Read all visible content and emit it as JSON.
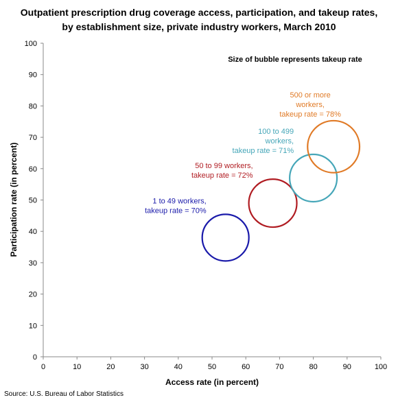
{
  "chart_data": {
    "type": "scatter",
    "title_lines": [
      "Outpatient prescription drug coverage access, participation, and takeup rates,",
      "by establishment size, private industry workers, March 2010"
    ],
    "xlabel": "Access rate (in percent)",
    "ylabel": "Participation rate (in percent)",
    "xlim": [
      0,
      100
    ],
    "ylim": [
      0,
      100
    ],
    "xticks": [
      "0",
      "10",
      "20",
      "30",
      "40",
      "50",
      "60",
      "70",
      "80",
      "90",
      "100"
    ],
    "yticks": [
      "0",
      "10",
      "20",
      "30",
      "40",
      "50",
      "60",
      "70",
      "80",
      "90",
      "100"
    ],
    "grid": false,
    "note": "Size of bubble represents takeup rate",
    "source": "Source: U.S. Bureau of Labor Statistics",
    "points": [
      {
        "x": 54,
        "y": 38,
        "size": 70,
        "color": "#1a1aaa",
        "label_lines": [
          "1 to 49 workers,",
          "takeup rate = 70%"
        ]
      },
      {
        "x": 68,
        "y": 49,
        "size": 72,
        "color": "#b01c22",
        "label_lines": [
          "50 to 99 workers,",
          "takeup rate = 72%"
        ]
      },
      {
        "x": 80,
        "y": 57,
        "size": 71,
        "color": "#45a6b8",
        "label_lines": [
          "100 to 499",
          "workers,",
          "takeup rate = 71%"
        ]
      },
      {
        "x": 86,
        "y": 67,
        "size": 78,
        "color": "#e07a26",
        "label_lines": [
          "500 or more",
          "workers,",
          "takeup rate = 78%"
        ]
      }
    ]
  }
}
